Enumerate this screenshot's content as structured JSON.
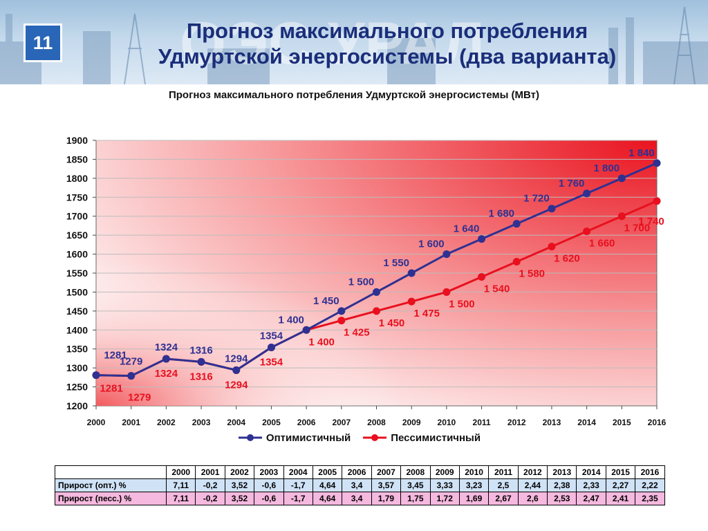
{
  "header": {
    "slide_number": "11",
    "title_line1": "Прогноз максимального потребления",
    "title_line2": "Удмуртской энергосистемы (два варианта)"
  },
  "chart_data": {
    "type": "line",
    "title": "Прогноз максимального потребления Удмуртской энергосистемы (МВт)",
    "x": [
      "2000",
      "2001",
      "2002",
      "2003",
      "2004",
      "2005",
      "2006",
      "2007",
      "2008",
      "2009",
      "2010",
      "2011",
      "2012",
      "2013",
      "2014",
      "2015",
      "2016"
    ],
    "ylim": [
      1200,
      1900
    ],
    "yticks": [
      "1200",
      "1250",
      "1300",
      "1350",
      "1400",
      "1450",
      "1500",
      "1550",
      "1600",
      "1650",
      "1700",
      "1750",
      "1800",
      "1850",
      "1900"
    ],
    "grid": "horizontal",
    "legend_position": "bottom",
    "series": [
      {
        "name": "Оптимистичный",
        "color": "#2e3192",
        "values": [
          1281,
          1279,
          1324,
          1316,
          1294,
          1354,
          1400,
          1450,
          1500,
          1550,
          1600,
          1640,
          1680,
          1720,
          1760,
          1800,
          1840
        ],
        "labels": [
          "1281",
          "1279",
          "1324",
          "1316",
          "1294",
          "1354",
          "1 400",
          "1 450",
          "1 500",
          "1 550",
          "1 600",
          "1 640",
          "1 680",
          "1 720",
          "1 760",
          "1 800",
          "1 840"
        ]
      },
      {
        "name": "Пессимистичный",
        "color": "#e8101e",
        "values": [
          1281,
          1279,
          1324,
          1316,
          1294,
          1354,
          1400,
          1425,
          1450,
          1475,
          1500,
          1540,
          1580,
          1620,
          1660,
          1700,
          1740
        ],
        "labels": [
          "1281",
          "1279",
          "1324",
          "1316",
          "1294",
          "1354",
          "1 400",
          "1 425",
          "1 450",
          "1 475",
          "1 500",
          "1 540",
          "1 580",
          "1 620",
          "1 660",
          "1 700",
          "1 740"
        ]
      }
    ]
  },
  "table": {
    "years": [
      "2000",
      "2001",
      "2002",
      "2003",
      "2004",
      "2005",
      "2006",
      "2007",
      "2008",
      "2009",
      "2010",
      "2011",
      "2012",
      "2013",
      "2014",
      "2015",
      "2016"
    ],
    "rows": [
      {
        "label": "Прирост (опт.) %",
        "values": [
          "7,11",
          "-0,2",
          "3,52",
          "-0,6",
          "-1,7",
          "4,64",
          "3,4",
          "3,57",
          "3,45",
          "3,33",
          "3,23",
          "2,5",
          "2,44",
          "2,38",
          "2,33",
          "2,27",
          "2,22"
        ]
      },
      {
        "label": "Прирост (песс.) %",
        "values": [
          "7,11",
          "-0,2",
          "3,52",
          "-0,6",
          "-1,7",
          "4,64",
          "3,4",
          "1,79",
          "1,75",
          "1,72",
          "1,69",
          "2,67",
          "2,6",
          "2,53",
          "2,47",
          "2,41",
          "2,35"
        ]
      }
    ]
  }
}
